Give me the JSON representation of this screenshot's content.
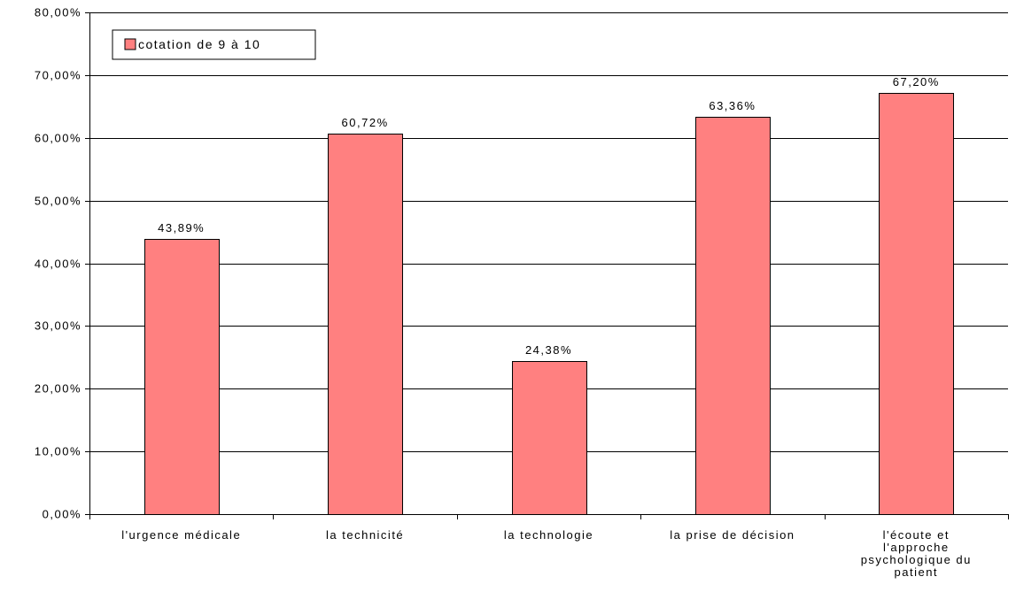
{
  "chart_data": {
    "type": "bar",
    "categories": [
      [
        "l'urgence médicale"
      ],
      [
        "la technicité"
      ],
      [
        "la technologie"
      ],
      [
        "la prise de décision"
      ],
      [
        "l'écoute et",
        "l'approche",
        "psychologique du",
        "patient"
      ]
    ],
    "series": [
      {
        "name": "cotation de 9 à 10",
        "values": [
          43.89,
          60.72,
          24.38,
          63.36,
          67.2
        ],
        "labels": [
          "43,89%",
          "60,72%",
          "24,38%",
          "63,36%",
          "67,20%"
        ],
        "color": "#ff8080"
      }
    ],
    "ylim": [
      0,
      80
    ],
    "yticks": [
      "0,00%",
      "10,00%",
      "20,00%",
      "30,00%",
      "40,00%",
      "50,00%",
      "60,00%",
      "70,00%",
      "80,00%"
    ],
    "grid": true,
    "legend_position": "top-left",
    "title": "",
    "xlabel": "",
    "ylabel": ""
  }
}
